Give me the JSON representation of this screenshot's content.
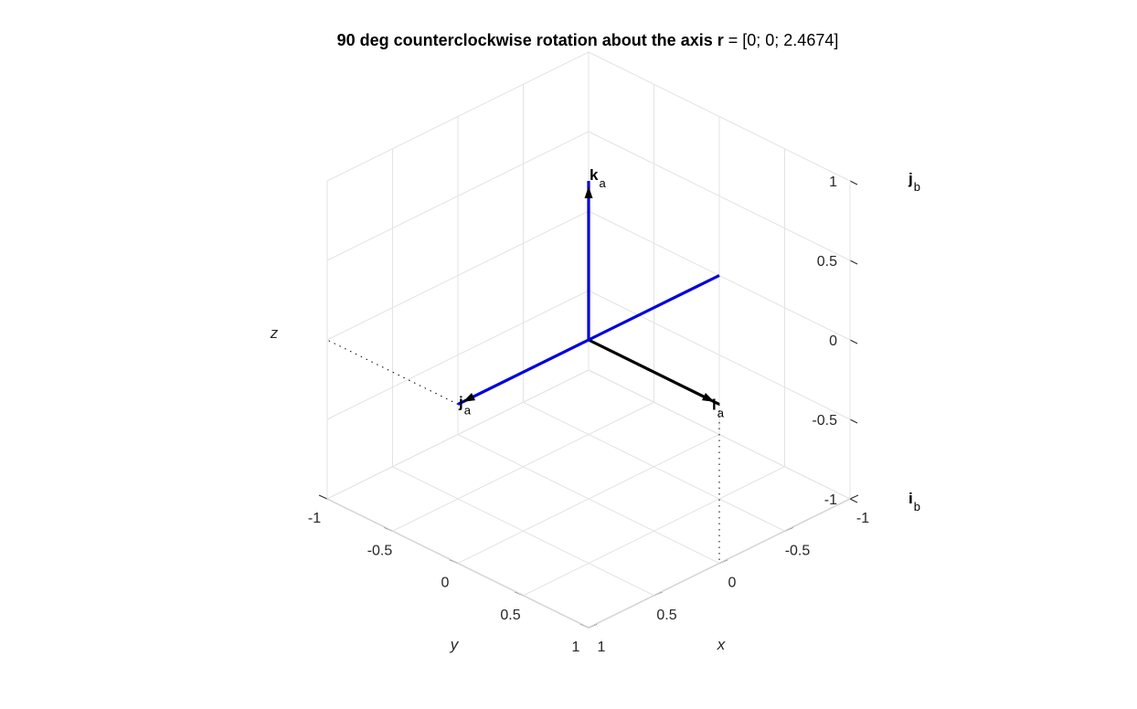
{
  "title": {
    "prefix": "90 deg counterclockwise rotation about the axis ",
    "vector_symbol": "r",
    "suffix": " = [0; 0; 2.4674]"
  },
  "chart_data": {
    "type": "line",
    "view": "3D isometric",
    "grid": true,
    "box": true,
    "xlabel": "x",
    "ylabel": "y",
    "zlabel": "z",
    "xlim": [
      -1,
      1
    ],
    "ylim": [
      -1,
      1
    ],
    "zlim": [
      -1,
      1
    ],
    "xticks": [
      "-1",
      "-0.5",
      "0",
      "0.5",
      "1"
    ],
    "yticks": [
      "-1",
      "-0.5",
      "0",
      "0.5",
      "1"
    ],
    "zticks": [
      "-1",
      "-0.5",
      "0",
      "0.5",
      "1"
    ],
    "vectors": [
      {
        "id": "ia",
        "from": [
          0,
          0,
          0
        ],
        "to": [
          0,
          1,
          0
        ],
        "color": "#000000",
        "arrow": true,
        "label_main": "i",
        "label_sub": "a"
      },
      {
        "id": "ja",
        "from": [
          0,
          0,
          0
        ],
        "to": [
          1,
          0,
          0
        ],
        "color": "#0000dd",
        "arrow": true,
        "label_main": "j",
        "label_sub": "a"
      },
      {
        "id": "ka",
        "from": [
          0,
          0,
          0
        ],
        "to": [
          0,
          0,
          1
        ],
        "color": "#0000dd",
        "arrow": true,
        "label_main": "k",
        "label_sub": "a"
      },
      {
        "id": "back",
        "from": [
          0,
          0,
          0
        ],
        "to": [
          -1,
          0,
          0
        ],
        "color": "#0000dd",
        "arrow": false
      }
    ],
    "dotted_lines": [
      {
        "from": [
          0,
          1,
          0
        ],
        "to": [
          0,
          1,
          -1
        ]
      },
      {
        "from": [
          1,
          0,
          0
        ],
        "to": [
          1,
          -1,
          0
        ]
      }
    ],
    "extra_labels": [
      {
        "id": "jb",
        "main": "j",
        "sub": "b"
      },
      {
        "id": "ib",
        "main": "i",
        "sub": "b"
      }
    ]
  }
}
